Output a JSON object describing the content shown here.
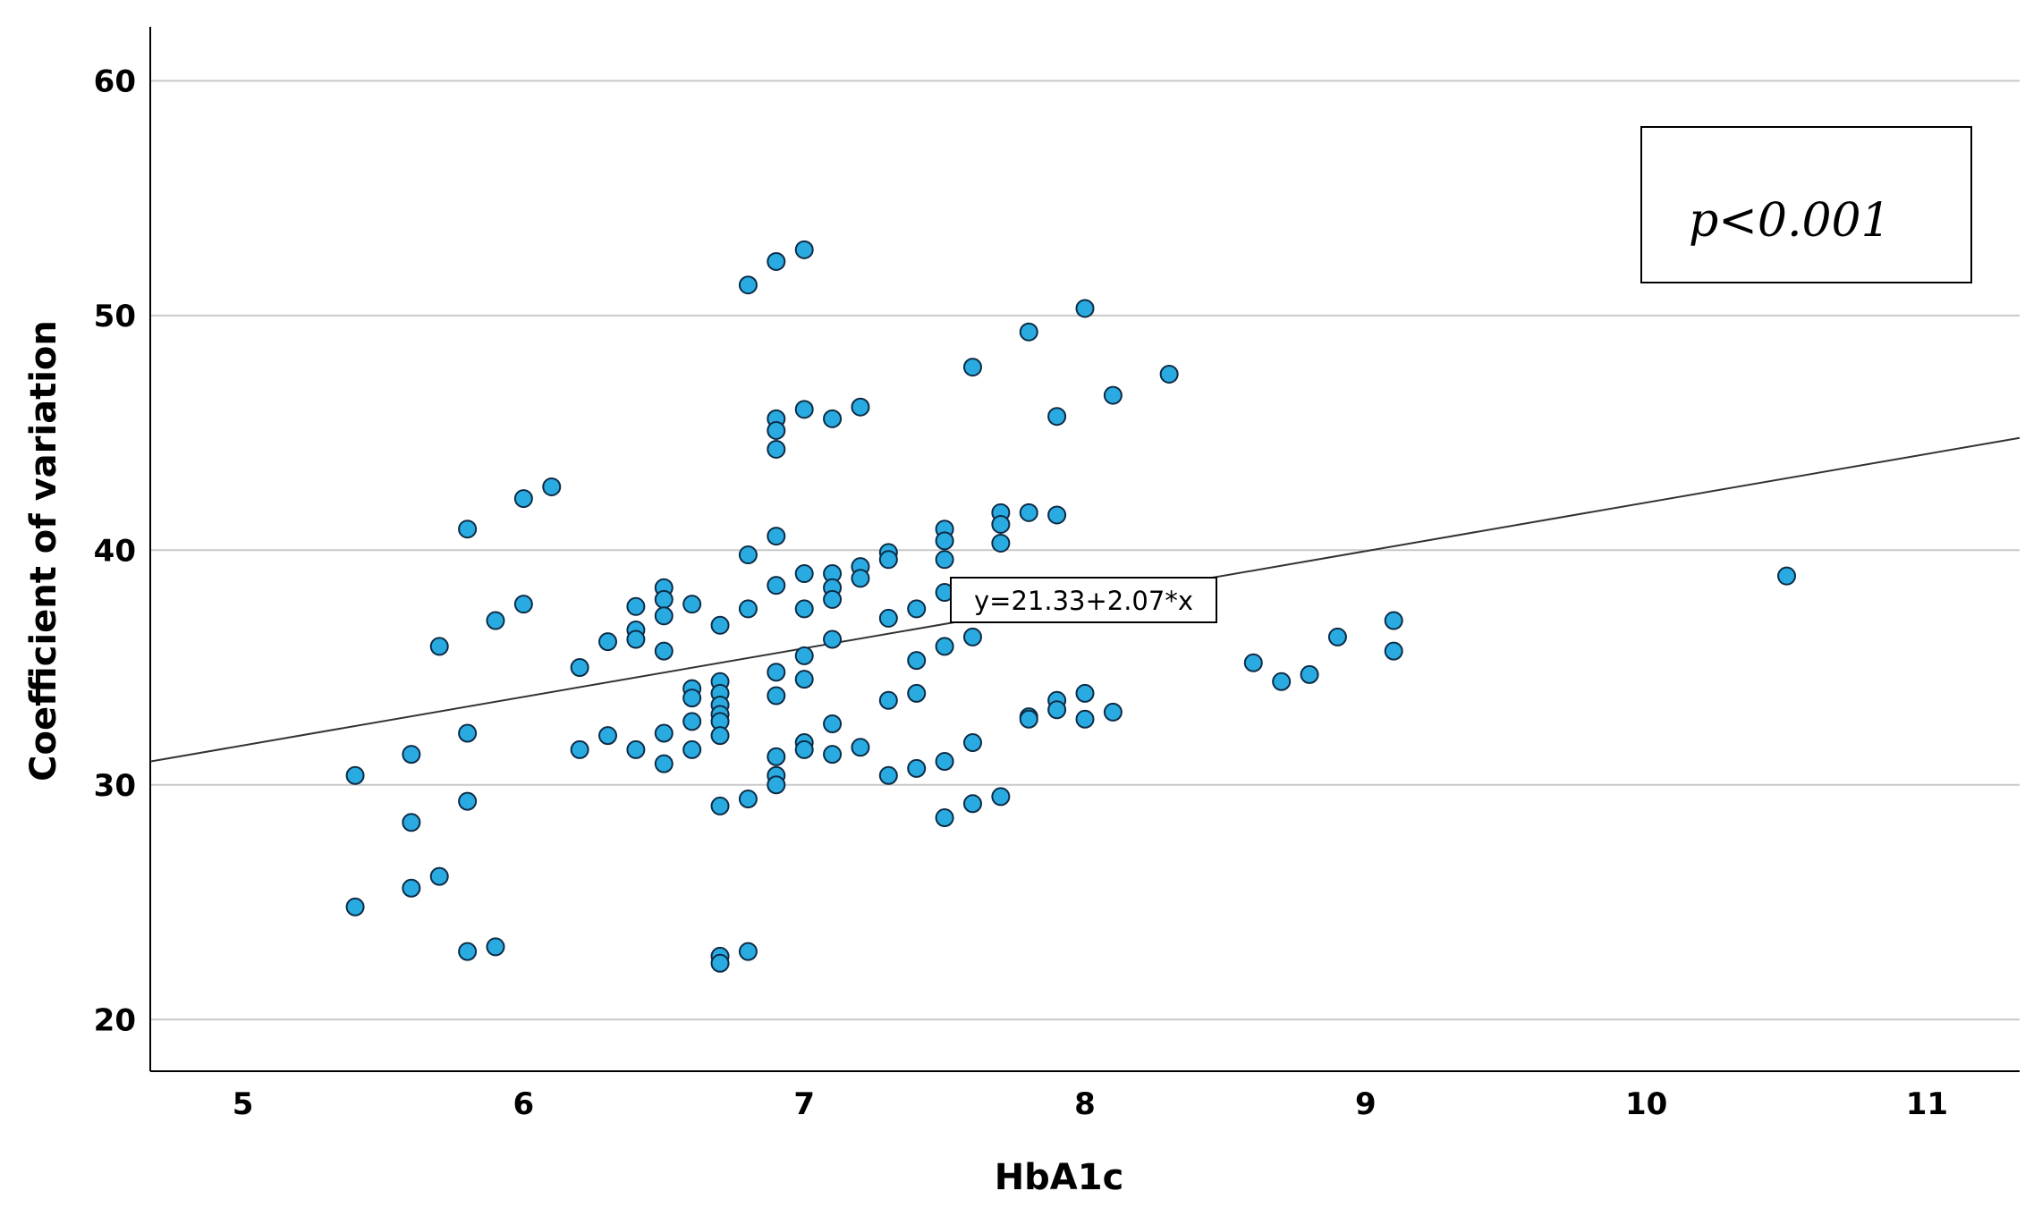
{
  "chart_data": {
    "type": "scatter",
    "title": "",
    "xlabel": "HbA1c",
    "ylabel": "Coefficient of variation",
    "xlim": [
      4.67,
      11.33
    ],
    "ylim": [
      17.8,
      62.3
    ],
    "xticks": [
      5,
      6,
      7,
      8,
      9,
      10,
      11
    ],
    "yticks": [
      20,
      30,
      40,
      50,
      60
    ],
    "grid": "horizontal",
    "colors": {
      "point_fill": "#29abe2",
      "point_stroke": "#0d2b45",
      "line": "#333333",
      "grid": "#c8c8c8"
    },
    "fit_line": {
      "intercept": 21.33,
      "slope": 2.07,
      "label": "y=21.33+2.07*x"
    },
    "annotation": "p<0.001",
    "points": [
      [
        5.4,
        30.4
      ],
      [
        5.4,
        24.8
      ],
      [
        5.6,
        31.3
      ],
      [
        5.6,
        28.4
      ],
      [
        5.6,
        25.6
      ],
      [
        5.7,
        35.9
      ],
      [
        5.7,
        26.1
      ],
      [
        5.8,
        40.9
      ],
      [
        5.8,
        32.2
      ],
      [
        5.8,
        29.3
      ],
      [
        5.8,
        22.9
      ],
      [
        5.9,
        37.0
      ],
      [
        5.9,
        23.1
      ],
      [
        6.0,
        42.2
      ],
      [
        6.0,
        37.7
      ],
      [
        6.1,
        42.7
      ],
      [
        6.2,
        35.0
      ],
      [
        6.2,
        31.5
      ],
      [
        6.3,
        36.1
      ],
      [
        6.3,
        32.1
      ],
      [
        6.4,
        37.6
      ],
      [
        6.4,
        36.6
      ],
      [
        6.4,
        36.2
      ],
      [
        6.4,
        31.5
      ],
      [
        6.5,
        38.4
      ],
      [
        6.5,
        37.9
      ],
      [
        6.5,
        37.2
      ],
      [
        6.5,
        35.7
      ],
      [
        6.5,
        32.2
      ],
      [
        6.5,
        30.9
      ],
      [
        6.6,
        37.7
      ],
      [
        6.6,
        34.1
      ],
      [
        6.6,
        33.7
      ],
      [
        6.6,
        32.7
      ],
      [
        6.6,
        31.5
      ],
      [
        6.7,
        36.8
      ],
      [
        6.7,
        34.4
      ],
      [
        6.7,
        33.9
      ],
      [
        6.7,
        33.4
      ],
      [
        6.7,
        33.0
      ],
      [
        6.7,
        32.7
      ],
      [
        6.7,
        32.1
      ],
      [
        6.7,
        29.1
      ],
      [
        6.7,
        22.7
      ],
      [
        6.7,
        22.4
      ],
      [
        6.8,
        51.3
      ],
      [
        6.8,
        39.8
      ],
      [
        6.8,
        37.5
      ],
      [
        6.8,
        29.4
      ],
      [
        6.8,
        22.9
      ],
      [
        6.9,
        52.3
      ],
      [
        6.9,
        45.6
      ],
      [
        6.9,
        45.1
      ],
      [
        6.9,
        44.3
      ],
      [
        6.9,
        40.6
      ],
      [
        6.9,
        38.5
      ],
      [
        6.9,
        34.8
      ],
      [
        6.9,
        33.8
      ],
      [
        6.9,
        31.2
      ],
      [
        6.9,
        30.4
      ],
      [
        6.9,
        30.0
      ],
      [
        7.0,
        52.8
      ],
      [
        7.0,
        46.0
      ],
      [
        7.0,
        39.0
      ],
      [
        7.0,
        37.5
      ],
      [
        7.0,
        35.5
      ],
      [
        7.0,
        34.5
      ],
      [
        7.0,
        31.8
      ],
      [
        7.0,
        31.5
      ],
      [
        7.1,
        45.6
      ],
      [
        7.1,
        39.0
      ],
      [
        7.1,
        38.4
      ],
      [
        7.1,
        37.9
      ],
      [
        7.1,
        36.2
      ],
      [
        7.1,
        32.6
      ],
      [
        7.1,
        31.3
      ],
      [
        7.2,
        46.1
      ],
      [
        7.2,
        39.3
      ],
      [
        7.2,
        38.8
      ],
      [
        7.2,
        31.6
      ],
      [
        7.3,
        39.9
      ],
      [
        7.3,
        39.6
      ],
      [
        7.3,
        37.1
      ],
      [
        7.3,
        33.6
      ],
      [
        7.3,
        30.4
      ],
      [
        7.4,
        37.5
      ],
      [
        7.4,
        35.3
      ],
      [
        7.4,
        33.9
      ],
      [
        7.4,
        30.7
      ],
      [
        7.5,
        40.9
      ],
      [
        7.5,
        40.4
      ],
      [
        7.5,
        39.6
      ],
      [
        7.5,
        38.2
      ],
      [
        7.5,
        35.9
      ],
      [
        7.5,
        31.0
      ],
      [
        7.5,
        28.6
      ],
      [
        7.6,
        47.8
      ],
      [
        7.6,
        36.3
      ],
      [
        7.6,
        31.8
      ],
      [
        7.6,
        29.2
      ],
      [
        7.7,
        41.6
      ],
      [
        7.7,
        41.1
      ],
      [
        7.7,
        40.3
      ],
      [
        7.7,
        29.5
      ],
      [
        7.8,
        49.3
      ],
      [
        7.8,
        41.6
      ],
      [
        7.8,
        32.9
      ],
      [
        7.8,
        32.8
      ],
      [
        7.9,
        45.7
      ],
      [
        7.9,
        41.5
      ],
      [
        7.9,
        33.6
      ],
      [
        7.9,
        33.2
      ],
      [
        8.0,
        50.3
      ],
      [
        8.0,
        33.9
      ],
      [
        8.0,
        32.8
      ],
      [
        8.1,
        46.6
      ],
      [
        8.1,
        33.1
      ],
      [
        8.3,
        47.5
      ],
      [
        8.6,
        35.2
      ],
      [
        8.7,
        34.4
      ],
      [
        8.8,
        34.7
      ],
      [
        8.9,
        36.3
      ],
      [
        9.1,
        37.0
      ],
      [
        9.1,
        35.7
      ],
      [
        10.5,
        38.9
      ]
    ]
  }
}
